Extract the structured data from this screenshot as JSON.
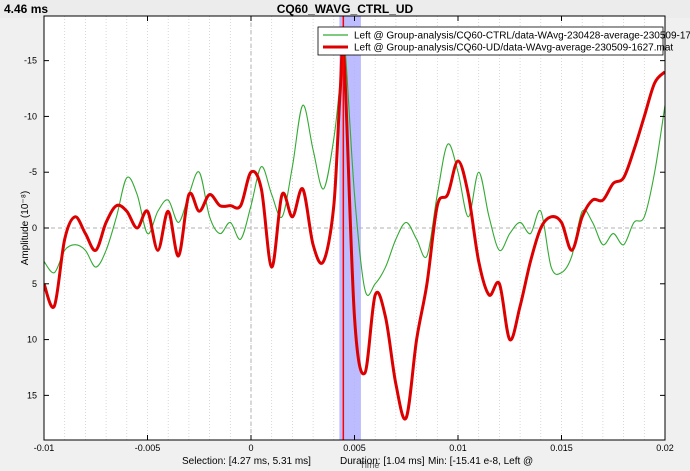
{
  "header": {
    "time_readout": "4.46 ms",
    "figure_title": "CQ60_WAVG_CTRL_UD"
  },
  "status_bar": {
    "selection": "Selection: [4.27 ms, 5.31 ms]",
    "duration": "Duration: [1.04 ms]",
    "min": "Min: [-15.41 e-8, Left @"
  },
  "chart_data": {
    "type": "line",
    "title": "CQ60_WAVG_CTRL_UD",
    "xlabel": "Time",
    "ylabel": "Amplitude (10⁻⁸)",
    "xlim": [
      -0.01,
      0.02
    ],
    "ylim": [
      19,
      -19
    ],
    "y_inverted": true,
    "x_ticks": [
      -0.01,
      -0.005,
      0,
      0.005,
      0.01,
      0.015,
      0.02
    ],
    "x_tick_labels": [
      "-0.01",
      "-0.005",
      "0",
      "0.005",
      "0.01",
      "0.015",
      "0.02"
    ],
    "y_ticks": [
      -15,
      -10,
      -5,
      0,
      5,
      10,
      15
    ],
    "y_tick_labels": [
      "-15",
      "-10",
      "-5",
      "0",
      "5",
      "10",
      "15"
    ],
    "grid": "vertical dotted",
    "legend_position": "top-right",
    "cursor_x": 0.00446,
    "selection": [
      0.00427,
      0.00531
    ],
    "colors": {
      "series1": "#33aa33",
      "series2": "#dd0000",
      "selection": "#b0b0ff",
      "cursor": "#ff0000"
    },
    "series": [
      {
        "name": "Left @ Group-analysis/CQ60-CTRL/data-WAvg-230428-average-230509-17",
        "color": "#33aa33",
        "x": [
          -0.01,
          -0.0095,
          -0.009,
          -0.0085,
          -0.008,
          -0.0075,
          -0.007,
          -0.0065,
          -0.006,
          -0.0055,
          -0.005,
          -0.0045,
          -0.004,
          -0.0035,
          -0.003,
          -0.0025,
          -0.002,
          -0.0015,
          -0.001,
          -0.0005,
          0,
          0.0005,
          0.001,
          0.0015,
          0.002,
          0.0025,
          0.003,
          0.0035,
          0.004,
          0.0043,
          0.0045,
          0.005,
          0.0055,
          0.006,
          0.0065,
          0.007,
          0.0075,
          0.008,
          0.0085,
          0.009,
          0.0095,
          0.01,
          0.0105,
          0.011,
          0.0115,
          0.012,
          0.0125,
          0.013,
          0.0135,
          0.014,
          0.0145,
          0.015,
          0.0155,
          0.016,
          0.0165,
          0.017,
          0.0175,
          0.018,
          0.0185,
          0.019,
          0.0195,
          0.02
        ],
        "y": [
          3,
          4,
          2,
          1.5,
          2,
          3.5,
          2,
          -1,
          -4.5,
          -3,
          0.5,
          -1.5,
          -2.5,
          -0.5,
          -3,
          -5,
          -1,
          0.5,
          -0.5,
          1,
          -2,
          -5.5,
          -3,
          -1,
          -5.5,
          -11,
          -7,
          -3.5,
          -8,
          -13,
          -17,
          -3,
          5.5,
          5,
          3.5,
          1,
          -0.5,
          1,
          2.5,
          -3,
          -7.5,
          -5,
          -1,
          -5,
          -1,
          2,
          0.5,
          -0.5,
          0.5,
          -1.5,
          3.5,
          4,
          2.5,
          -1.5,
          -0.5,
          1.5,
          0.5,
          1.5,
          -0.5,
          -1,
          -5,
          -11
        ]
      },
      {
        "name": "Left @ Group-analysis/CQ60-UD/data-WAvg-average-230509-1627.mat",
        "color": "#dd0000",
        "x": [
          -0.01,
          -0.0095,
          -0.009,
          -0.0085,
          -0.008,
          -0.0075,
          -0.007,
          -0.0065,
          -0.006,
          -0.0055,
          -0.005,
          -0.0045,
          -0.004,
          -0.0035,
          -0.003,
          -0.0025,
          -0.002,
          -0.0015,
          -0.001,
          -0.0005,
          0,
          0.0005,
          0.001,
          0.0015,
          0.002,
          0.0025,
          0.003,
          0.0035,
          0.004,
          0.0043,
          0.0045,
          0.005,
          0.0055,
          0.006,
          0.0065,
          0.007,
          0.0075,
          0.008,
          0.0085,
          0.009,
          0.0095,
          0.01,
          0.0105,
          0.011,
          0.0115,
          0.012,
          0.0125,
          0.013,
          0.0135,
          0.014,
          0.0145,
          0.015,
          0.0155,
          0.016,
          0.0165,
          0.017,
          0.0175,
          0.018,
          0.0185,
          0.019,
          0.0195,
          0.02
        ],
        "y": [
          5,
          7,
          1,
          -1,
          0.5,
          2,
          -0.5,
          -2,
          -1.5,
          0,
          -1.5,
          2,
          -1.5,
          2.5,
          -3,
          -1.5,
          -3,
          -2,
          -2,
          -2,
          -5,
          -3.5,
          3.5,
          -3,
          -1,
          -3.5,
          1.5,
          3,
          -2,
          -12,
          -15,
          8,
          13,
          6,
          8,
          14,
          17,
          10,
          5,
          -2,
          -3,
          -6,
          -3,
          3,
          6,
          5,
          10,
          7,
          3,
          0,
          -1,
          -0.5,
          2,
          -1,
          -2.5,
          -2.5,
          -4,
          -4.5,
          -7,
          -10,
          -13,
          -14
        ]
      }
    ]
  }
}
